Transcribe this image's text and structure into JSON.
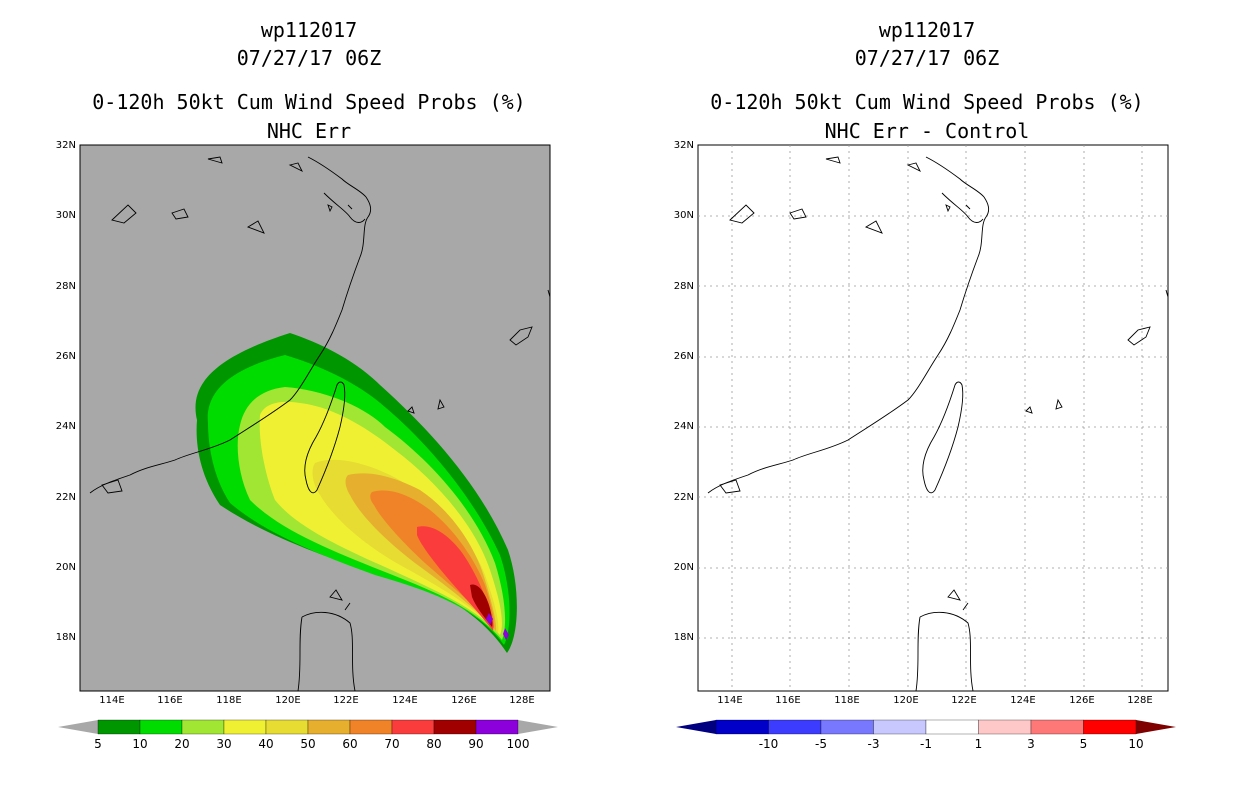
{
  "left": {
    "title1": "wp112017",
    "title2": "07/27/17 06Z",
    "title3": "0-120h 50kt Cum Wind Speed Probs (%)",
    "title4": "NHC Err",
    "colorbar": {
      "colors": [
        "#009600",
        "#00dc00",
        "#a0e632",
        "#f0f032",
        "#e6dc32",
        "#e6af2d",
        "#f08228",
        "#fa3c3c",
        "#a00000",
        "#8c00dc"
      ],
      "labels": [
        "5",
        "10",
        "20",
        "30",
        "40",
        "50",
        "60",
        "70",
        "80",
        "90",
        "100"
      ]
    }
  },
  "right": {
    "title1": "wp112017",
    "title2": "07/27/17 06Z",
    "title3": "0-120h 50kt Cum Wind Speed Probs (%)",
    "title4": "NHC Err - Control",
    "colorbar": {
      "colors": [
        "#0000c8",
        "#3c3cff",
        "#7878ff",
        "#c8c8ff",
        "#ffffff",
        "#ffc8c8",
        "#ff7878",
        "#ff0000"
      ],
      "labels": [
        "-10",
        "-5",
        "-3",
        "-1",
        "1",
        "3",
        "5",
        "10"
      ]
    }
  },
  "axes": {
    "lat_labels": [
      "32N",
      "30N",
      "28N",
      "26N",
      "24N",
      "22N",
      "20N",
      "18N"
    ],
    "lon_labels": [
      "114E",
      "116E",
      "118E",
      "120E",
      "122E",
      "124E",
      "126E",
      "128E"
    ]
  }
}
